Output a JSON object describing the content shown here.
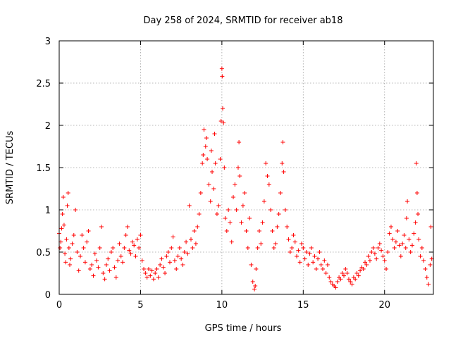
{
  "chart_data": {
    "type": "scatter",
    "title": "Day 258 of 2024, SRMTID for receiver ab18",
    "xlabel": "GPS time / hours",
    "ylabel": "SRMTID / TECUs",
    "xlim": [
      0,
      23
    ],
    "ylim": [
      0,
      3
    ],
    "x_ticks": [
      0,
      5,
      10,
      15,
      20
    ],
    "y_ticks": [
      0,
      0.5,
      1,
      1.5,
      2,
      2.5,
      3
    ],
    "x_tick_labels": [
      "0",
      "5",
      "10",
      "15",
      "20"
    ],
    "y_tick_labels": [
      "0",
      "0.5",
      "1",
      "1.5",
      "2",
      "2.5",
      "3"
    ],
    "grid": true,
    "marker": "+",
    "color": "#ff0000",
    "series": [
      {
        "name": "ab18",
        "points": [
          [
            0.0,
            0.72
          ],
          [
            0.05,
            0.55
          ],
          [
            0.1,
            0.62
          ],
          [
            0.15,
            0.78
          ],
          [
            0.2,
            0.95
          ],
          [
            0.25,
            1.15
          ],
          [
            0.3,
            0.82
          ],
          [
            0.35,
            0.48
          ],
          [
            0.4,
            0.38
          ],
          [
            0.45,
            0.65
          ],
          [
            0.5,
            1.05
          ],
          [
            0.55,
            1.2
          ],
          [
            0.6,
            0.55
          ],
          [
            0.65,
            0.35
          ],
          [
            0.7,
            0.42
          ],
          [
            0.8,
            0.6
          ],
          [
            0.9,
            0.7
          ],
          [
            1.0,
            1.0
          ],
          [
            1.1,
            0.5
          ],
          [
            1.2,
            0.28
          ],
          [
            1.3,
            0.45
          ],
          [
            1.4,
            0.7
          ],
          [
            1.5,
            0.55
          ],
          [
            1.6,
            0.38
          ],
          [
            1.7,
            0.62
          ],
          [
            1.8,
            0.75
          ],
          [
            1.9,
            0.3
          ],
          [
            2.0,
            0.35
          ],
          [
            2.1,
            0.22
          ],
          [
            2.2,
            0.48
          ],
          [
            2.3,
            0.4
          ],
          [
            2.4,
            0.32
          ],
          [
            2.5,
            0.55
          ],
          [
            2.6,
            0.8
          ],
          [
            2.7,
            0.25
          ],
          [
            2.8,
            0.18
          ],
          [
            2.9,
            0.35
          ],
          [
            3.0,
            0.42
          ],
          [
            3.1,
            0.28
          ],
          [
            3.2,
            0.5
          ],
          [
            3.3,
            0.55
          ],
          [
            3.4,
            0.32
          ],
          [
            3.5,
            0.2
          ],
          [
            3.6,
            0.4
          ],
          [
            3.7,
            0.6
          ],
          [
            3.8,
            0.45
          ],
          [
            3.9,
            0.38
          ],
          [
            4.0,
            0.55
          ],
          [
            4.1,
            0.7
          ],
          [
            4.2,
            0.8
          ],
          [
            4.3,
            0.52
          ],
          [
            4.4,
            0.48
          ],
          [
            4.5,
            0.62
          ],
          [
            4.6,
            0.58
          ],
          [
            4.7,
            0.45
          ],
          [
            4.8,
            0.65
          ],
          [
            4.9,
            0.55
          ],
          [
            5.0,
            0.7
          ],
          [
            5.1,
            0.4
          ],
          [
            5.2,
            0.3
          ],
          [
            5.3,
            0.25
          ],
          [
            5.4,
            0.2
          ],
          [
            5.5,
            0.3
          ],
          [
            5.6,
            0.22
          ],
          [
            5.7,
            0.28
          ],
          [
            5.8,
            0.18
          ],
          [
            5.9,
            0.25
          ],
          [
            6.0,
            0.3
          ],
          [
            6.1,
            0.2
          ],
          [
            6.2,
            0.35
          ],
          [
            6.3,
            0.42
          ],
          [
            6.4,
            0.32
          ],
          [
            6.5,
            0.25
          ],
          [
            6.6,
            0.45
          ],
          [
            6.7,
            0.5
          ],
          [
            6.8,
            0.38
          ],
          [
            6.9,
            0.55
          ],
          [
            7.0,
            0.68
          ],
          [
            7.1,
            0.4
          ],
          [
            7.2,
            0.3
          ],
          [
            7.3,
            0.45
          ],
          [
            7.4,
            0.55
          ],
          [
            7.5,
            0.42
          ],
          [
            7.6,
            0.35
          ],
          [
            7.7,
            0.5
          ],
          [
            7.8,
            0.62
          ],
          [
            7.9,
            0.48
          ],
          [
            8.0,
            1.05
          ],
          [
            8.1,
            0.65
          ],
          [
            8.2,
            0.55
          ],
          [
            8.3,
            0.75
          ],
          [
            8.4,
            0.6
          ],
          [
            8.5,
            0.8
          ],
          [
            8.6,
            0.95
          ],
          [
            8.7,
            1.2
          ],
          [
            8.8,
            1.55
          ],
          [
            8.85,
            1.65
          ],
          [
            8.9,
            1.95
          ],
          [
            9.0,
            1.75
          ],
          [
            9.05,
            1.85
          ],
          [
            9.1,
            1.6
          ],
          [
            9.2,
            1.3
          ],
          [
            9.3,
            1.1
          ],
          [
            9.35,
            1.7
          ],
          [
            9.4,
            1.45
          ],
          [
            9.5,
            1.25
          ],
          [
            9.55,
            1.9
          ],
          [
            9.6,
            1.55
          ],
          [
            9.7,
            0.95
          ],
          [
            9.8,
            1.05
          ],
          [
            9.9,
            1.6
          ],
          [
            9.95,
            2.05
          ],
          [
            10.0,
            2.67
          ],
          [
            10.02,
            2.58
          ],
          [
            10.05,
            2.2
          ],
          [
            10.1,
            2.03
          ],
          [
            10.15,
            1.5
          ],
          [
            10.2,
            0.9
          ],
          [
            10.3,
            0.75
          ],
          [
            10.4,
            1.0
          ],
          [
            10.5,
            0.85
          ],
          [
            10.6,
            0.62
          ],
          [
            10.7,
            1.15
          ],
          [
            10.8,
            1.3
          ],
          [
            10.9,
            1.0
          ],
          [
            11.0,
            1.5
          ],
          [
            11.05,
            1.8
          ],
          [
            11.1,
            1.4
          ],
          [
            11.2,
            0.85
          ],
          [
            11.3,
            1.05
          ],
          [
            11.4,
            1.2
          ],
          [
            11.5,
            0.75
          ],
          [
            11.6,
            0.55
          ],
          [
            11.7,
            0.9
          ],
          [
            11.8,
            0.35
          ],
          [
            11.9,
            0.15
          ],
          [
            12.0,
            0.06
          ],
          [
            12.05,
            0.1
          ],
          [
            12.1,
            0.3
          ],
          [
            12.2,
            0.55
          ],
          [
            12.3,
            0.75
          ],
          [
            12.4,
            0.6
          ],
          [
            12.5,
            0.85
          ],
          [
            12.6,
            1.1
          ],
          [
            12.7,
            1.55
          ],
          [
            12.8,
            1.4
          ],
          [
            12.9,
            1.3
          ],
          [
            13.0,
            1.0
          ],
          [
            13.1,
            0.75
          ],
          [
            13.2,
            0.55
          ],
          [
            13.3,
            0.6
          ],
          [
            13.4,
            0.8
          ],
          [
            13.5,
            0.95
          ],
          [
            13.6,
            1.2
          ],
          [
            13.7,
            1.55
          ],
          [
            13.75,
            1.8
          ],
          [
            13.8,
            1.45
          ],
          [
            13.9,
            1.0
          ],
          [
            14.0,
            0.8
          ],
          [
            14.1,
            0.65
          ],
          [
            14.2,
            0.5
          ],
          [
            14.3,
            0.55
          ],
          [
            14.4,
            0.7
          ],
          [
            14.5,
            0.62
          ],
          [
            14.6,
            0.45
          ],
          [
            14.7,
            0.52
          ],
          [
            14.8,
            0.38
          ],
          [
            14.9,
            0.6
          ],
          [
            15.0,
            0.55
          ],
          [
            15.1,
            0.42
          ],
          [
            15.2,
            0.5
          ],
          [
            15.3,
            0.35
          ],
          [
            15.4,
            0.48
          ],
          [
            15.5,
            0.55
          ],
          [
            15.6,
            0.38
          ],
          [
            15.7,
            0.45
          ],
          [
            15.8,
            0.3
          ],
          [
            15.9,
            0.42
          ],
          [
            16.0,
            0.5
          ],
          [
            16.1,
            0.35
          ],
          [
            16.2,
            0.3
          ],
          [
            16.3,
            0.4
          ],
          [
            16.4,
            0.25
          ],
          [
            16.5,
            0.35
          ],
          [
            16.6,
            0.2
          ],
          [
            16.7,
            0.15
          ],
          [
            16.8,
            0.12
          ],
          [
            16.9,
            0.1
          ],
          [
            17.0,
            0.08
          ],
          [
            17.1,
            0.15
          ],
          [
            17.2,
            0.2
          ],
          [
            17.3,
            0.18
          ],
          [
            17.4,
            0.25
          ],
          [
            17.5,
            0.22
          ],
          [
            17.6,
            0.3
          ],
          [
            17.7,
            0.25
          ],
          [
            17.8,
            0.18
          ],
          [
            17.9,
            0.15
          ],
          [
            18.0,
            0.12
          ],
          [
            18.1,
            0.2
          ],
          [
            18.2,
            0.18
          ],
          [
            18.3,
            0.25
          ],
          [
            18.4,
            0.22
          ],
          [
            18.5,
            0.28
          ],
          [
            18.6,
            0.32
          ],
          [
            18.7,
            0.3
          ],
          [
            18.8,
            0.38
          ],
          [
            18.9,
            0.35
          ],
          [
            19.0,
            0.45
          ],
          [
            19.1,
            0.4
          ],
          [
            19.2,
            0.5
          ],
          [
            19.3,
            0.55
          ],
          [
            19.4,
            0.48
          ],
          [
            19.5,
            0.42
          ],
          [
            19.6,
            0.55
          ],
          [
            19.7,
            0.6
          ],
          [
            19.8,
            0.52
          ],
          [
            19.9,
            0.45
          ],
          [
            20.0,
            0.4
          ],
          [
            20.1,
            0.3
          ],
          [
            20.2,
            0.5
          ],
          [
            20.3,
            0.72
          ],
          [
            20.4,
            0.8
          ],
          [
            20.5,
            0.65
          ],
          [
            20.6,
            0.55
          ],
          [
            20.7,
            0.62
          ],
          [
            20.8,
            0.75
          ],
          [
            20.9,
            0.58
          ],
          [
            21.0,
            0.45
          ],
          [
            21.1,
            0.6
          ],
          [
            21.2,
            0.7
          ],
          [
            21.3,
            0.55
          ],
          [
            21.35,
            0.9
          ],
          [
            21.4,
            1.1
          ],
          [
            21.5,
            0.65
          ],
          [
            21.6,
            0.5
          ],
          [
            21.7,
            0.58
          ],
          [
            21.8,
            0.72
          ],
          [
            21.9,
            0.85
          ],
          [
            21.95,
            1.55
          ],
          [
            22.0,
            1.2
          ],
          [
            22.05,
            0.95
          ],
          [
            22.1,
            0.65
          ],
          [
            22.2,
            0.45
          ],
          [
            22.3,
            0.55
          ],
          [
            22.4,
            0.4
          ],
          [
            22.5,
            0.3
          ],
          [
            22.6,
            0.2
          ],
          [
            22.7,
            0.12
          ],
          [
            22.8,
            0.35
          ],
          [
            22.85,
            0.8
          ],
          [
            22.9,
            0.42
          ]
        ]
      }
    ]
  }
}
